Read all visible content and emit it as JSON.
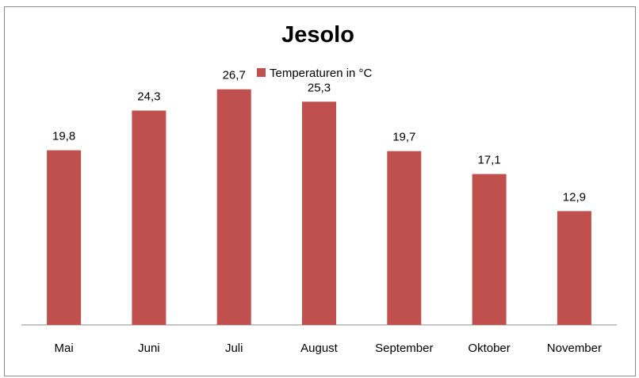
{
  "chart_data": {
    "type": "bar",
    "title": "Jesolo",
    "categories": [
      "Mai",
      "Juni",
      "Juli",
      "August",
      "September",
      "Oktober",
      "November"
    ],
    "series": [
      {
        "name": "Temperaturen in °C",
        "values": [
          19.8,
          24.3,
          26.7,
          25.3,
          19.7,
          17.1,
          12.9
        ],
        "labels": [
          "19,8",
          "24,3",
          "26,7",
          "25,3",
          "19,7",
          "17,1",
          "12,9"
        ],
        "color": "#c0504d"
      }
    ],
    "ylim": [
      0,
      30
    ],
    "grid": false,
    "legend_position": "top"
  }
}
